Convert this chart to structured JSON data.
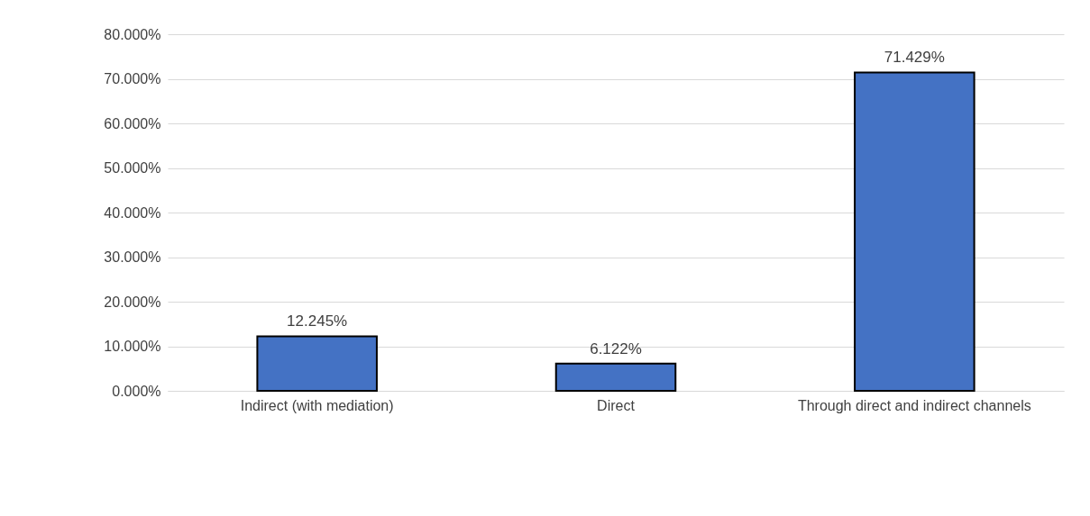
{
  "chart_data": {
    "type": "bar",
    "categories": [
      "Indirect (with mediation)",
      "Direct",
      "Through direct and indirect channels"
    ],
    "values": [
      12.245,
      6.122,
      71.429
    ],
    "value_labels": [
      "12.245%",
      "6.122%",
      "71.429%"
    ],
    "color": "#4472c4",
    "ylim": [
      0,
      80
    ],
    "yticks": [
      {
        "value": 0,
        "label": "0.000%"
      },
      {
        "value": 10,
        "label": "10.000%"
      },
      {
        "value": 20,
        "label": "20.000%"
      },
      {
        "value": 30,
        "label": "30.000%"
      },
      {
        "value": 40,
        "label": "40.000%"
      },
      {
        "value": 50,
        "label": "50.000%"
      },
      {
        "value": 60,
        "label": "60.000%"
      },
      {
        "value": 70,
        "label": "70.000%"
      },
      {
        "value": 80,
        "label": "80.000%"
      }
    ],
    "grid": "y"
  }
}
